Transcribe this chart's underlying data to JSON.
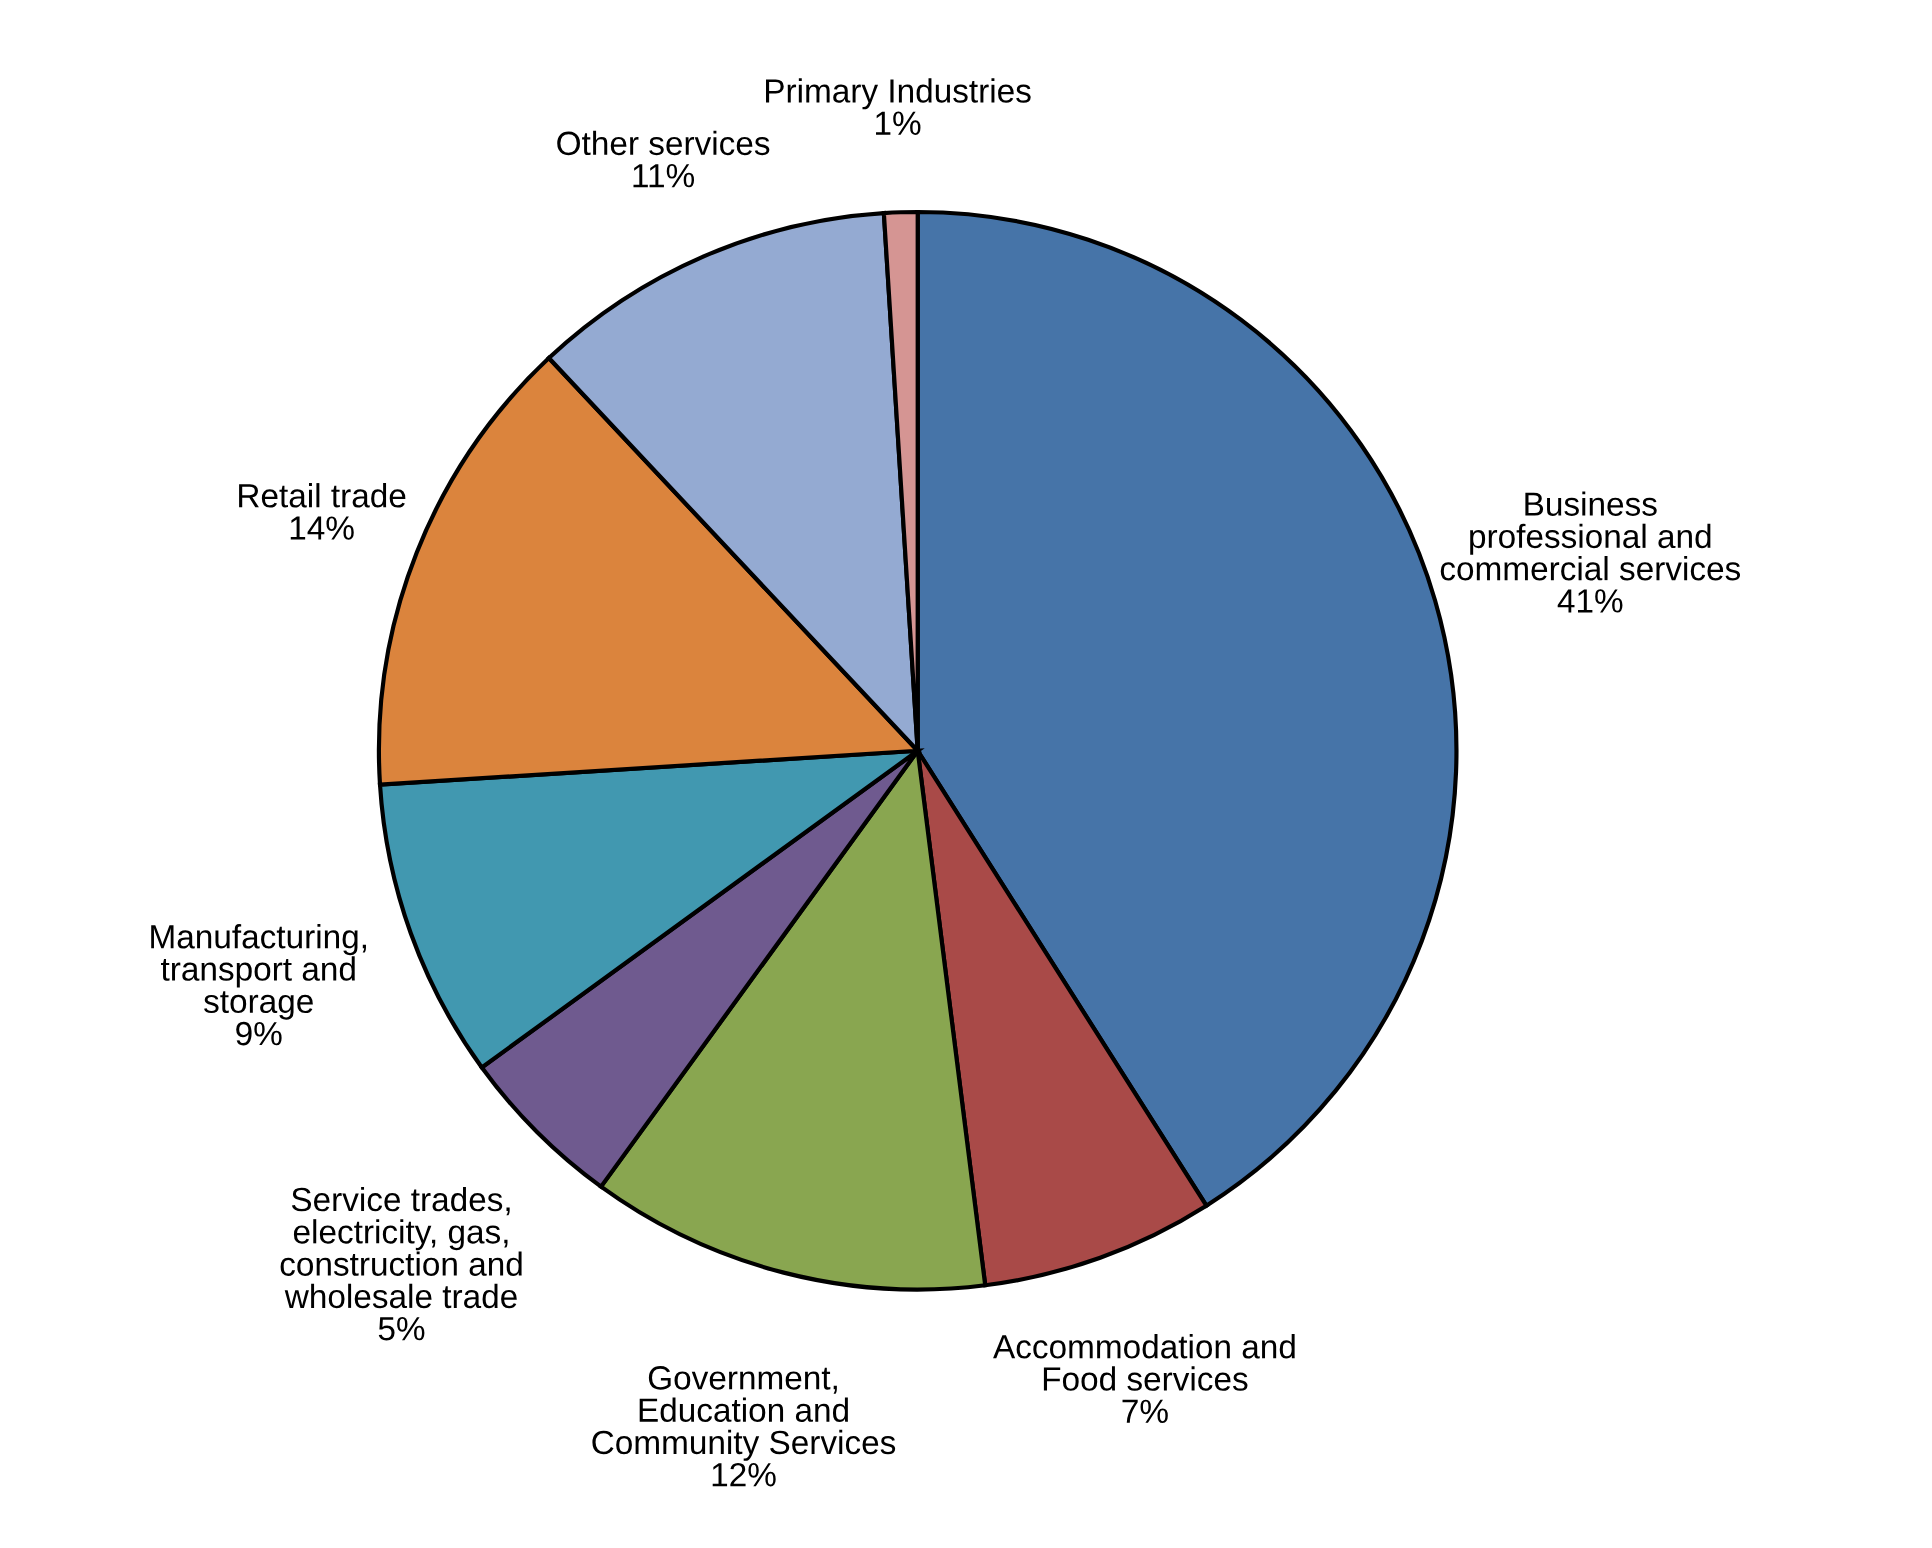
{
  "chart_data": {
    "type": "pie",
    "categories": [
      "Business\nprofessional and\ncommercial services",
      "Accommodation and\nFood services",
      "Government,\nEducation and\nCommunity Services",
      "Service trades,\nelectricity, gas,\nconstruction and\nwholesale trade",
      "Manufacturing,\ntransport and\nstorage",
      "Retail trade",
      "Other services",
      "Primary Industries"
    ],
    "values": [
      41,
      7,
      12,
      5,
      9,
      14,
      11,
      1
    ],
    "value_labels": [
      "41%",
      "7%",
      "12%",
      "5%",
      "9%",
      "14%",
      "11%",
      "1%"
    ],
    "colors": [
      "#4674a8",
      "#a94a48",
      "#89a650",
      "#6f5a8f",
      "#4198b0",
      "#db843d",
      "#94aad2",
      "#d59593"
    ],
    "legend": false
  }
}
